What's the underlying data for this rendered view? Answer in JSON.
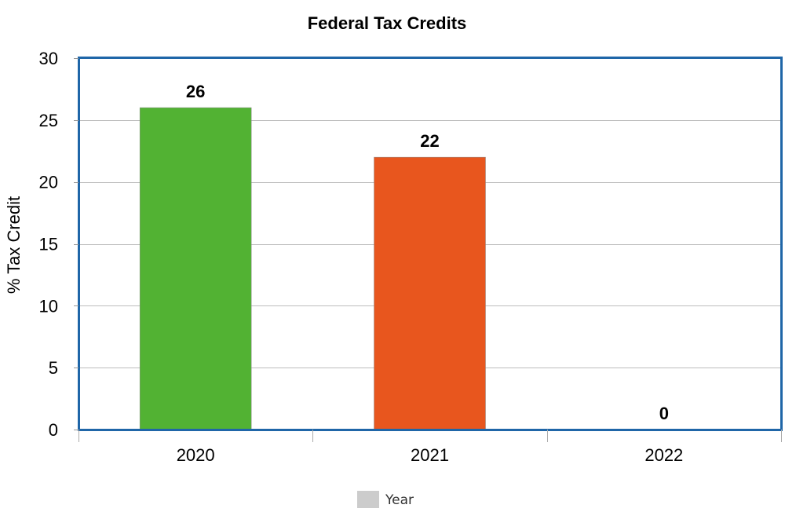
{
  "chart_data": {
    "type": "bar",
    "title": "Federal Tax Credits",
    "xlabel": "",
    "ylabel": "% Tax Credit",
    "categories": [
      "2020",
      "2021",
      "2022"
    ],
    "series": [
      {
        "name": "Year",
        "values": [
          26,
          22,
          0
        ]
      }
    ],
    "bar_colors": [
      "#52b233",
      "#e8561e",
      "#cccccc"
    ],
    "data_labels": [
      "26",
      "22",
      "0"
    ],
    "ylim": [
      0,
      30
    ],
    "yticks": [
      0,
      5,
      10,
      15,
      20,
      25,
      30
    ],
    "ytick_labels": [
      "0",
      "5",
      "10",
      "15",
      "20",
      "25",
      "30"
    ],
    "grid": true,
    "legend": {
      "position": "bottom",
      "items": [
        {
          "label": "Year",
          "color": "#cccccc"
        }
      ]
    },
    "colors": {
      "frame": "#1f66a8",
      "grid": "#bdbdbd"
    }
  }
}
